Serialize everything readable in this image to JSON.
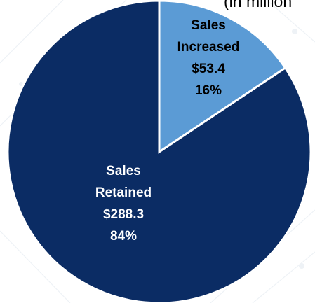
{
  "subtitle": "(in million",
  "chart_data": {
    "type": "pie",
    "title": "",
    "start_angle_deg": 0,
    "slices": [
      {
        "category": "Sales Increased",
        "label_lines": [
          "Sales",
          "Increased",
          "$53.4",
          "16%"
        ],
        "value": 53.4,
        "percent": 16,
        "color": "#5b9bd5",
        "label_color": "#000000"
      },
      {
        "category": "Sales Retained",
        "label_lines": [
          "Sales",
          "Retained",
          "$288.3",
          "84%"
        ],
        "value": 288.3,
        "percent": 84,
        "color": "#0b2c64",
        "label_color": "#ffffff"
      }
    ]
  },
  "colors": {
    "slice_border": "#ffffff",
    "background_pattern": "#eef2f6"
  }
}
